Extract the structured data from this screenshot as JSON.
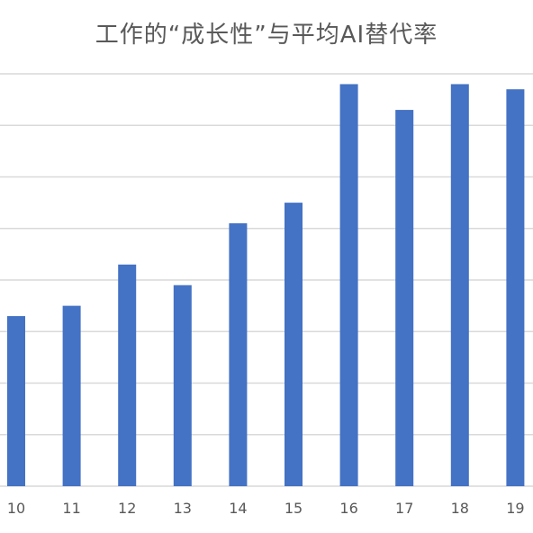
{
  "chart_data": {
    "type": "bar",
    "title": "工作的“成长性”与平均AI替代率",
    "xlabel": "",
    "ylabel": "",
    "categories": [
      "10",
      "11",
      "12",
      "13",
      "14",
      "15",
      "16",
      "17",
      "18",
      "19"
    ],
    "series": [
      {
        "values": [
          3.3,
          3.5,
          4.3,
          3.9,
          5.1,
          5.5,
          7.8,
          7.3,
          7.8,
          7.7
        ],
        "color": "#4472c4"
      }
    ],
    "ylim": [
      0,
      8
    ],
    "y_gridlines": true,
    "y_tick_labels_shown": false,
    "legend": "none"
  }
}
